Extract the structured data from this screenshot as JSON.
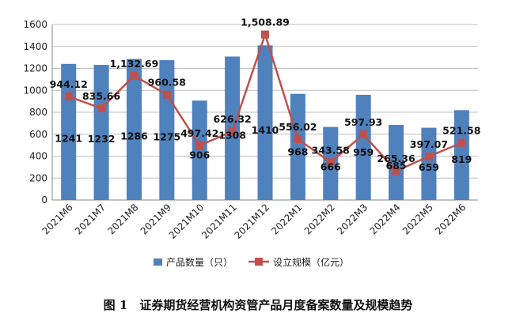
{
  "caption": "图 1　证券期货经营机构资管产品月度备案数量及规模趋势",
  "chart_data": {
    "type": "bar",
    "categories": [
      "2021M6",
      "2021M7",
      "2021M8",
      "2021M9",
      "2021M10",
      "2021M11",
      "2021M12",
      "2022M1",
      "2022M2",
      "2022M3",
      "2022M4",
      "2022M5",
      "2022M6"
    ],
    "ylim": [
      0,
      1600
    ],
    "yticks": [
      0,
      200,
      400,
      600,
      800,
      1000,
      1200,
      1400,
      1600
    ],
    "grid": true,
    "legend_position": "bottom",
    "series": [
      {
        "name": "产品数量（只）",
        "type": "bar",
        "color": "#4F81BD",
        "values": [
          1241,
          1232,
          1286,
          1275,
          906,
          1308,
          1410,
          968,
          666,
          959,
          685,
          659,
          819
        ],
        "labels": [
          "1241",
          "1232",
          "1286",
          "1275",
          "906",
          "1308",
          "1410",
          "968",
          "666",
          "959",
          "685",
          "659",
          "819"
        ]
      },
      {
        "name": "设立规模（亿元）",
        "type": "line",
        "color": "#C0504D",
        "values": [
          944.12,
          835.66,
          1132.69,
          960.58,
          497.42,
          626.32,
          1508.89,
          556.02,
          343.58,
          597.93,
          265.36,
          397.07,
          521.58
        ],
        "labels": [
          "944.12",
          "835.66",
          "1,132.69",
          "960.58",
          "497.42",
          "626.32",
          "1,508.89",
          "556.02",
          "343.58",
          "597.93",
          "265.36",
          "397.07",
          "521.58"
        ]
      }
    ]
  }
}
